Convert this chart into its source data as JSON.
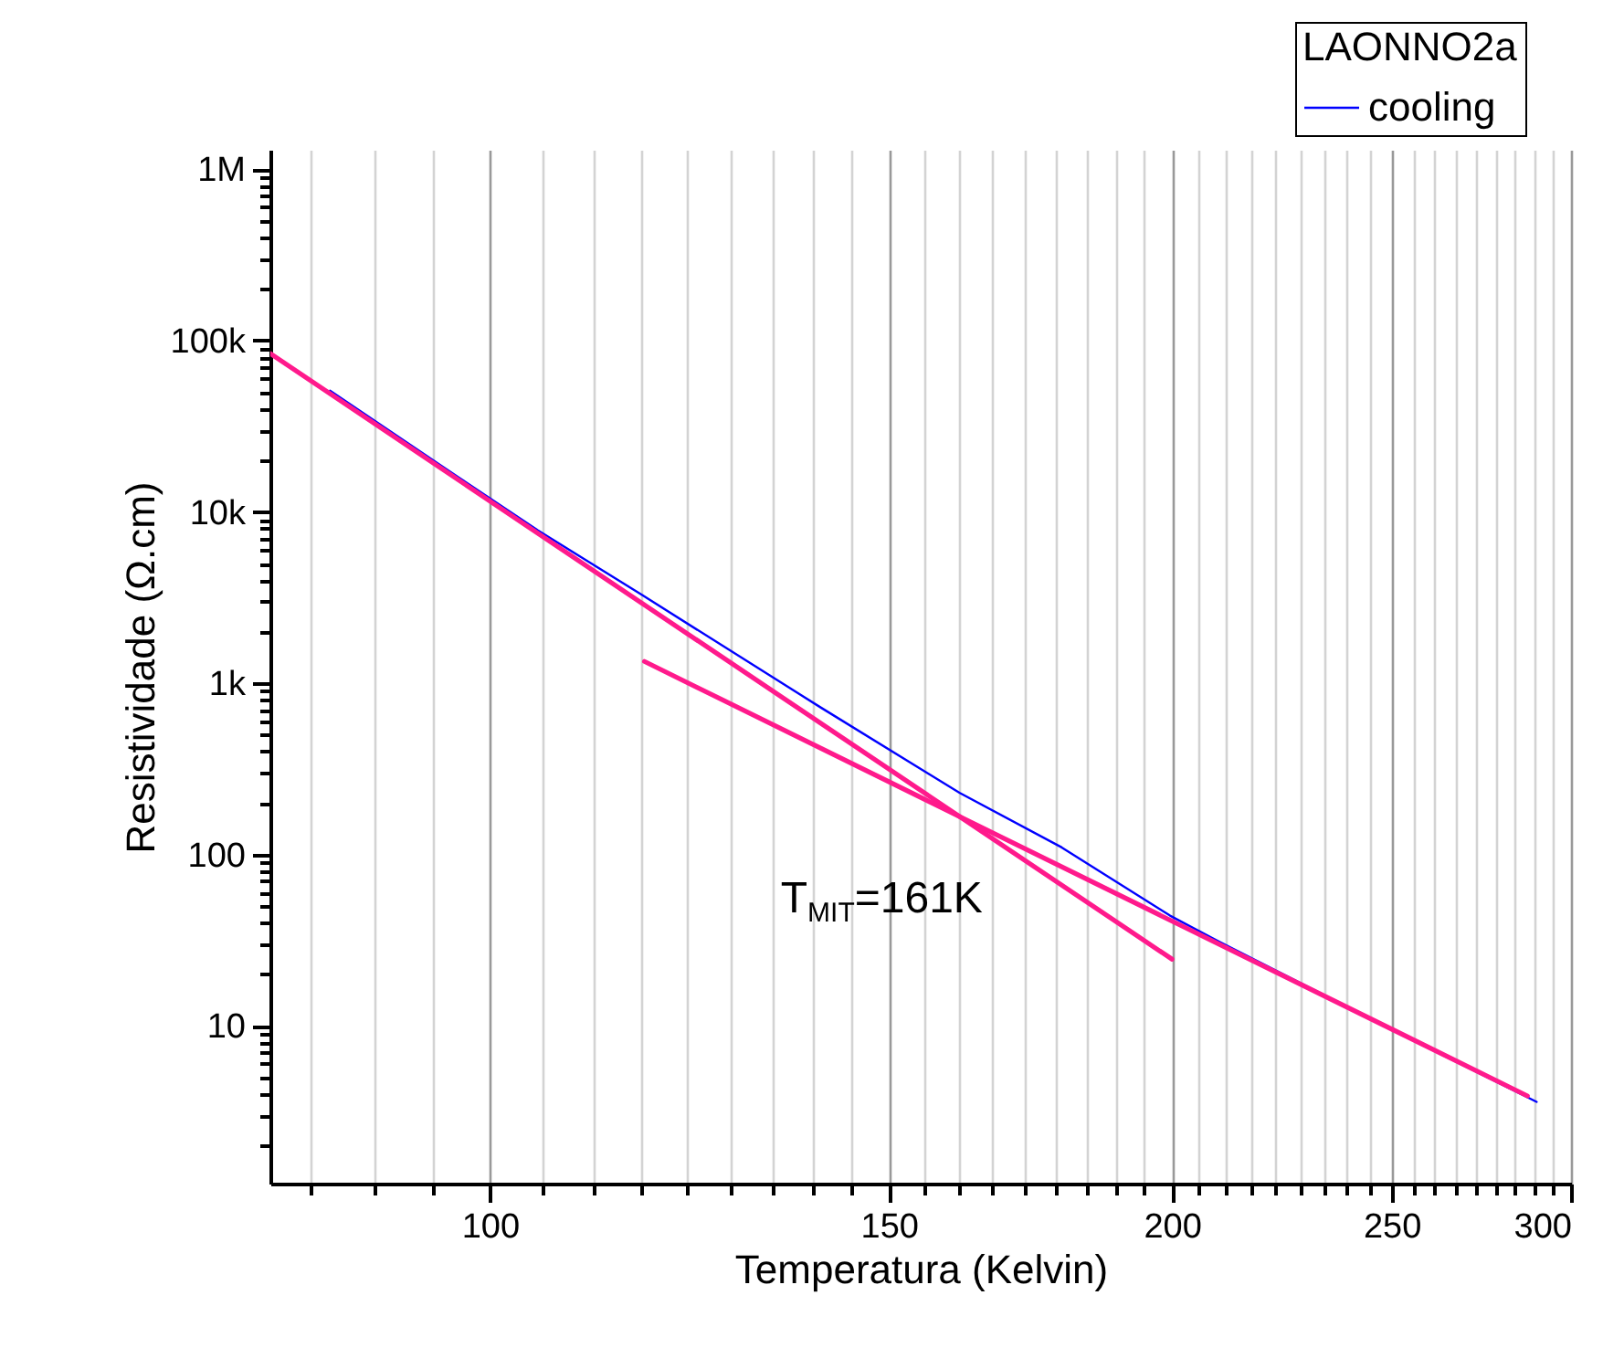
{
  "chart_data": {
    "type": "line",
    "xlabel": "Temperatura (Kelvin)",
    "ylabel": "Resistividade (Ω.cm)",
    "legend_title": "LAONNO2a",
    "log": "xy",
    "grid": "x",
    "legend": "top right",
    "xlim": [
      80,
      300
    ],
    "ylim": [
      1.2,
      1300000
    ],
    "xticks": [
      {
        "value": 83.33,
        "label": null
      },
      {
        "value": 88.89,
        "label": null
      },
      {
        "value": 94.44,
        "label": null
      },
      100,
      {
        "value": 105.56,
        "label": null
      },
      {
        "value": 111.11,
        "label": null
      },
      {
        "value": 116.67,
        "label": null
      },
      {
        "value": 122.22,
        "label": null
      },
      {
        "value": 127.78,
        "label": null
      },
      {
        "value": 133.33,
        "label": null
      },
      {
        "value": 138.89,
        "label": null
      },
      {
        "value": 144.44,
        "label": null
      },
      150,
      {
        "value": 155.56,
        "label": null
      },
      {
        "value": 161.11,
        "label": null
      },
      {
        "value": 166.67,
        "label": null
      },
      {
        "value": 172.22,
        "label": null
      },
      {
        "value": 177.78,
        "label": null
      },
      {
        "value": 183.33,
        "label": null
      },
      {
        "value": 188.89,
        "label": null
      },
      {
        "value": 194.44,
        "label": null
      },
      200,
      {
        "value": 205.56,
        "label": null
      },
      {
        "value": 211.11,
        "label": null
      },
      {
        "value": 216.67,
        "label": null
      },
      {
        "value": 222.22,
        "label": null
      },
      {
        "value": 227.78,
        "label": null
      },
      {
        "value": 233.33,
        "label": null
      },
      {
        "value": 238.89,
        "label": null
      },
      {
        "value": 244.44,
        "label": null
      },
      250,
      {
        "value": 255.56,
        "label": null
      },
      {
        "value": 261.11,
        "label": null
      },
      {
        "value": 266.67,
        "label": null
      },
      {
        "value": 272.22,
        "label": null
      },
      {
        "value": 277.78,
        "label": null
      },
      {
        "value": 283.33,
        "label": null
      },
      {
        "value": 288.89,
        "label": null
      },
      {
        "value": 294.44,
        "label": null
      },
      300
    ],
    "yticks": [
      {
        "value": 2,
        "label": null
      },
      {
        "value": 3,
        "label": null
      },
      {
        "value": 4,
        "label": null
      },
      {
        "value": 5,
        "label": null
      },
      {
        "value": 6,
        "label": null
      },
      {
        "value": 7,
        "label": null
      },
      {
        "value": 8,
        "label": null
      },
      {
        "value": 9,
        "label": null
      },
      10,
      {
        "value": 20,
        "label": null
      },
      {
        "value": 30,
        "label": null
      },
      {
        "value": 40,
        "label": null
      },
      {
        "value": 50,
        "label": null
      },
      {
        "value": 60,
        "label": null
      },
      {
        "value": 70,
        "label": null
      },
      {
        "value": 80,
        "label": null
      },
      {
        "value": 90,
        "label": null
      },
      100,
      {
        "value": 200,
        "label": null
      },
      {
        "value": 300,
        "label": null
      },
      {
        "value": 400,
        "label": null
      },
      {
        "value": 500,
        "label": null
      },
      {
        "value": 600,
        "label": null
      },
      {
        "value": 700,
        "label": null
      },
      {
        "value": 800,
        "label": null
      },
      {
        "value": 900,
        "label": null
      },
      {
        "value": 1000,
        "label": "1k"
      },
      {
        "value": 2000,
        "label": null
      },
      {
        "value": 3000,
        "label": null
      },
      {
        "value": 4000,
        "label": null
      },
      {
        "value": 5000,
        "label": null
      },
      {
        "value": 6000,
        "label": null
      },
      {
        "value": 7000,
        "label": null
      },
      {
        "value": 8000,
        "label": null
      },
      {
        "value": 9000,
        "label": null
      },
      {
        "value": 10000,
        "label": "10k"
      },
      {
        "value": 20000,
        "label": null
      },
      {
        "value": 30000,
        "label": null
      },
      {
        "value": 40000,
        "label": null
      },
      {
        "value": 50000,
        "label": null
      },
      {
        "value": 60000,
        "label": null
      },
      {
        "value": 70000,
        "label": null
      },
      {
        "value": 80000,
        "label": null
      },
      {
        "value": 90000,
        "label": null
      },
      {
        "value": 100000,
        "label": "100k"
      },
      {
        "value": 200000,
        "label": null
      },
      {
        "value": 300000,
        "label": null
      },
      {
        "value": 400000,
        "label": null
      },
      {
        "value": 500000,
        "label": null
      },
      {
        "value": 600000,
        "label": null
      },
      {
        "value": 700000,
        "label": null
      },
      {
        "value": 800000,
        "label": null
      },
      {
        "value": 900000,
        "label": null
      },
      {
        "value": 1000000,
        "label": "1M"
      }
    ],
    "series": [
      {
        "name": "cooling",
        "color": "#0000ff",
        "x": [
          85,
          97,
          105,
          116.6,
          140,
          161.2,
          178.8,
          199.6,
          209.8,
          250.5,
          289.7
        ],
        "values": [
          51000,
          15700,
          7800,
          3300,
          720,
          229,
          110,
          44,
          31,
          9.4,
          3.6
        ]
      },
      {
        "color": "#ff1a8c",
        "x": [
          80,
          200
        ],
        "values": [
          84000,
          24.5
        ]
      },
      {
        "color": "#ff1a8c",
        "x": [
          117,
          287
        ],
        "values": [
          1340,
          3.9
        ]
      }
    ],
    "annotations": [
      "T$_{MIT}$=161K"
    ]
  }
}
